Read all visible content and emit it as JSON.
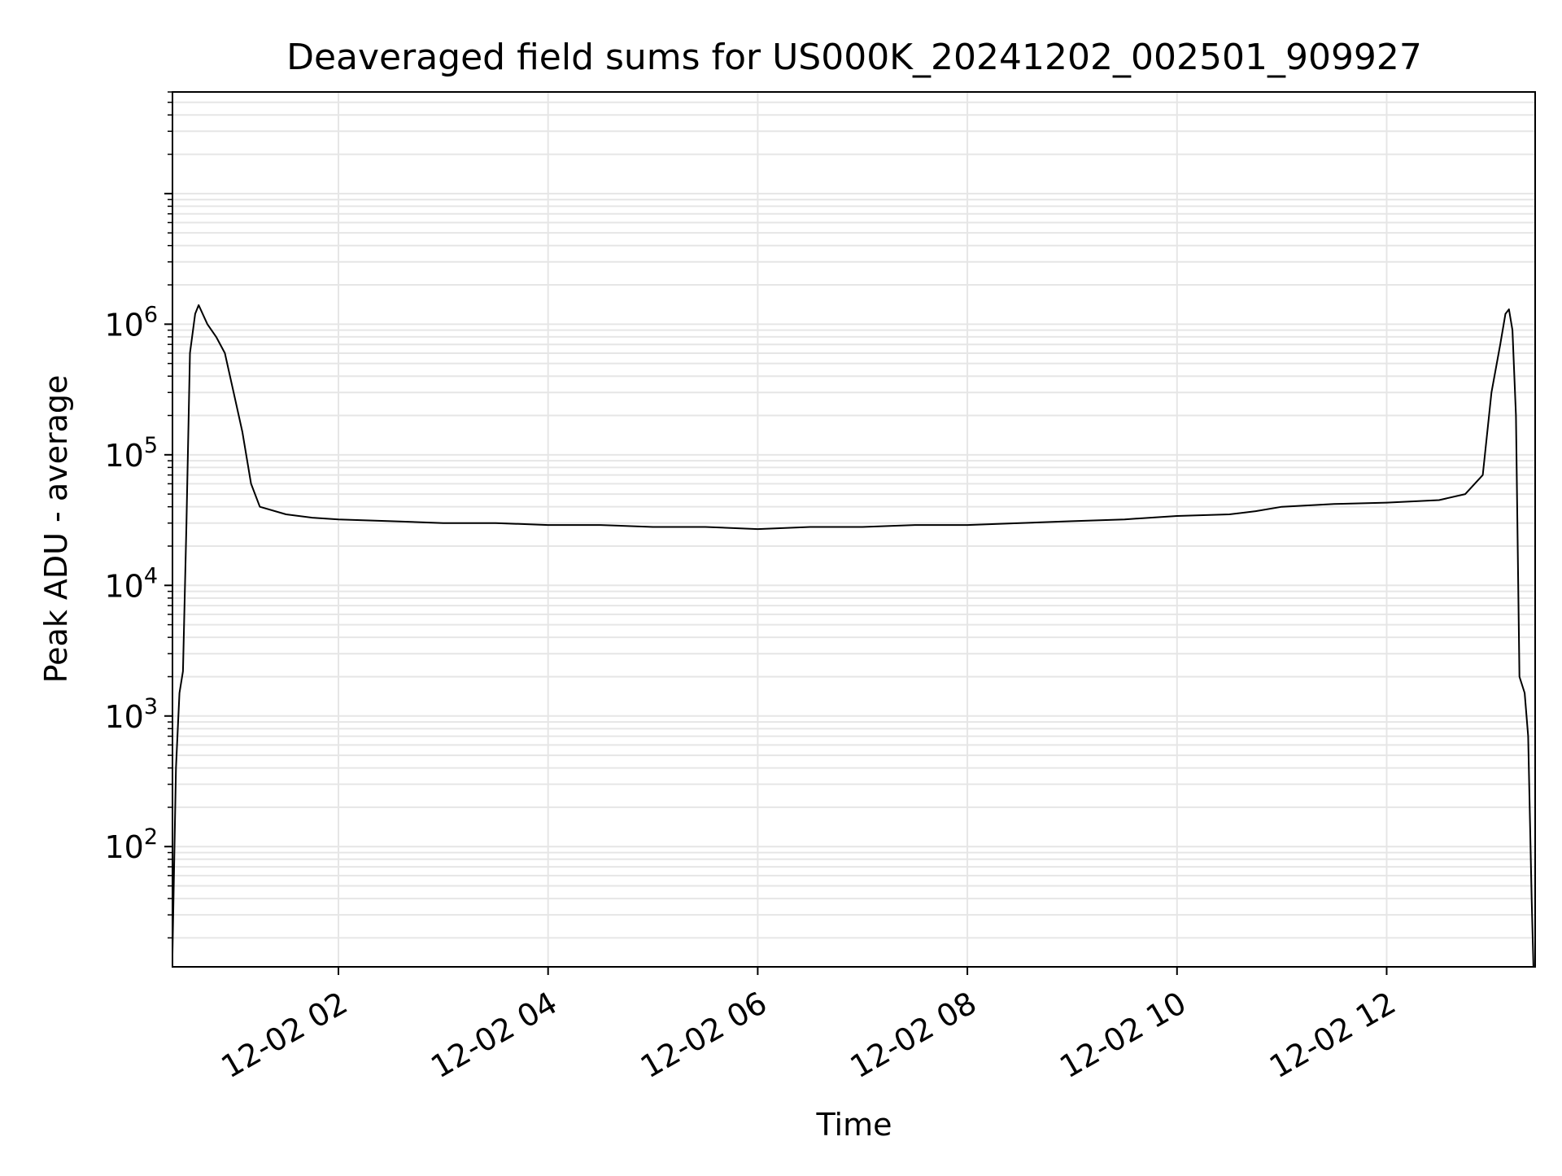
{
  "chart_data": {
    "type": "line",
    "title": "Deaveraged field sums for US000K_20241202_002501_909927",
    "xlabel": "Time",
    "ylabel": "Peak ADU - average",
    "yscale": "log",
    "ylim": [
      12,
      60000000
    ],
    "xlim": [
      "2024-12-02 00:25",
      "2024-12-02 13:25"
    ],
    "grid": true,
    "legend": "none",
    "line_color": "#000000",
    "grid_color": "#e6e6e6",
    "x_ticks": [
      {
        "value": "2024-12-02 02:00",
        "label": "12-02 02"
      },
      {
        "value": "2024-12-02 04:00",
        "label": "12-02 04"
      },
      {
        "value": "2024-12-02 06:00",
        "label": "12-02 06"
      },
      {
        "value": "2024-12-02 08:00",
        "label": "12-02 08"
      },
      {
        "value": "2024-12-02 10:00",
        "label": "12-02 10"
      },
      {
        "value": "2024-12-02 12:00",
        "label": "12-02 12"
      }
    ],
    "y_ticks": [
      {
        "value": 100,
        "base": "10",
        "exp": "2"
      },
      {
        "value": 1000,
        "base": "10",
        "exp": "3"
      },
      {
        "value": 10000,
        "base": "10",
        "exp": "4"
      },
      {
        "value": 100000,
        "base": "10",
        "exp": "5"
      },
      {
        "value": 1000000,
        "base": "10",
        "exp": "6"
      }
    ],
    "series": [
      {
        "x": [
          "2024-12-02 00:25",
          "2024-12-02 00:27",
          "2024-12-02 00:29",
          "2024-12-02 00:31",
          "2024-12-02 00:33",
          "2024-12-02 00:35",
          "2024-12-02 00:38",
          "2024-12-02 00:40",
          "2024-12-02 00:45",
          "2024-12-02 00:50",
          "2024-12-02 00:55",
          "2024-12-02 01:00",
          "2024-12-02 01:05",
          "2024-12-02 01:10",
          "2024-12-02 01:15",
          "2024-12-02 01:30",
          "2024-12-02 01:45",
          "2024-12-02 02:00",
          "2024-12-02 02:30",
          "2024-12-02 03:00",
          "2024-12-02 03:30",
          "2024-12-02 04:00",
          "2024-12-02 04:30",
          "2024-12-02 05:00",
          "2024-12-02 05:30",
          "2024-12-02 06:00",
          "2024-12-02 06:30",
          "2024-12-02 07:00",
          "2024-12-02 07:30",
          "2024-12-02 08:00",
          "2024-12-02 08:30",
          "2024-12-02 09:00",
          "2024-12-02 09:30",
          "2024-12-02 10:00",
          "2024-12-02 10:30",
          "2024-12-02 10:45",
          "2024-12-02 11:00",
          "2024-12-02 11:30",
          "2024-12-02 12:00",
          "2024-12-02 12:30",
          "2024-12-02 12:45",
          "2024-12-02 12:55",
          "2024-12-02 13:00",
          "2024-12-02 13:05",
          "2024-12-02 13:08",
          "2024-12-02 13:10",
          "2024-12-02 13:12",
          "2024-12-02 13:14",
          "2024-12-02 13:16",
          "2024-12-02 13:19",
          "2024-12-02 13:21",
          "2024-12-02 13:23",
          "2024-12-02 13:24"
        ],
        "y": [
          15,
          400,
          1500,
          2200,
          30000,
          600000,
          1200000,
          1400000,
          1000000,
          800000,
          600000,
          300000,
          150000,
          60000,
          40000,
          35000,
          33000,
          32000,
          31000,
          30000,
          30000,
          29000,
          29000,
          28000,
          28000,
          27000,
          28000,
          28000,
          29000,
          29000,
          30000,
          31000,
          32000,
          34000,
          35000,
          37000,
          40000,
          42000,
          43000,
          45000,
          50000,
          70000,
          300000,
          700000,
          1200000,
          1300000,
          900000,
          200000,
          2000,
          1500,
          700,
          40,
          12
        ]
      }
    ]
  }
}
